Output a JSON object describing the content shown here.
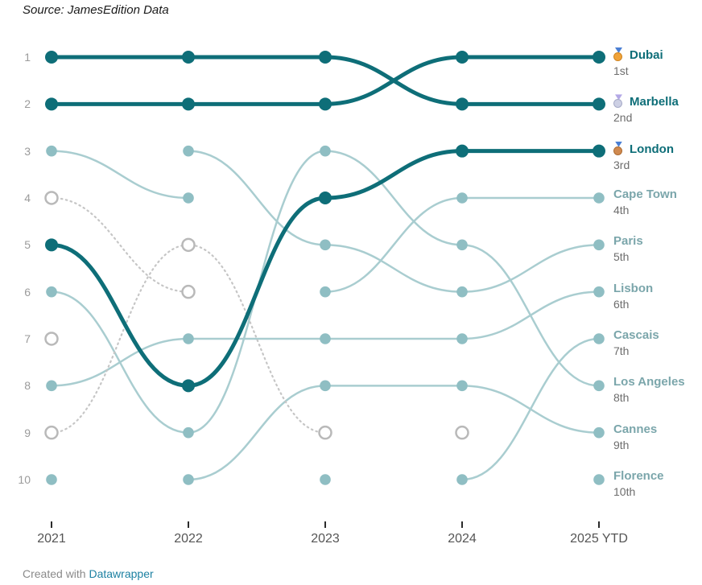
{
  "source_note": "Source: JamesEdition Data",
  "footer": {
    "prefix": "Created with ",
    "link_label": "Datawrapper"
  },
  "colors": {
    "dark": "#0e6e78",
    "light-line": "#a9cdd0",
    "light-dot": "#8fbec3",
    "open-stroke": "#b9b9b9",
    "dotted-line": "#c6c6c6",
    "rank-label": "#9b9b9b",
    "axis-label": "#555555",
    "name-light": "#7ba6ab",
    "ordinal": "#6d6d6d",
    "link": "#1d81a2",
    "source-text": "#1a1a1a",
    "footer-text": "#8a8a8a",
    "tick": "#2b2b2b"
  },
  "chart_data": {
    "type": "line",
    "subtype": "bump-rank-chart",
    "x_labels": [
      "2021",
      "2022",
      "2023",
      "2024",
      "2025 YTD"
    ],
    "rank_axis": [
      "1",
      "2",
      "3",
      "4",
      "5",
      "6",
      "7",
      "8",
      "9",
      "10"
    ],
    "rank_range": [
      1,
      10
    ],
    "grid": false,
    "legend_position": "right-inline-labels",
    "series": [
      {
        "name": "Dubai",
        "label": "Dubai",
        "ordinal": "1st",
        "medal": "gold",
        "emphasis": "dark",
        "points": [
          {
            "x": "2021",
            "rank": 2
          },
          {
            "x": "2022",
            "rank": 2
          },
          {
            "x": "2023",
            "rank": 2
          },
          {
            "x": "2024",
            "rank": 1
          },
          {
            "x": "2025 YTD",
            "rank": 1
          }
        ]
      },
      {
        "name": "Marbella",
        "label": "Marbella",
        "ordinal": "2nd",
        "medal": "silver",
        "emphasis": "dark",
        "points": [
          {
            "x": "2021",
            "rank": 1
          },
          {
            "x": "2022",
            "rank": 1
          },
          {
            "x": "2023",
            "rank": 1
          },
          {
            "x": "2024",
            "rank": 2
          },
          {
            "x": "2025 YTD",
            "rank": 2
          }
        ]
      },
      {
        "name": "London",
        "label": "London",
        "ordinal": "3rd",
        "medal": "bronze",
        "emphasis": "dark",
        "points": [
          {
            "x": "2021",
            "rank": 5
          },
          {
            "x": "2022",
            "rank": 8
          },
          {
            "x": "2023",
            "rank": 4
          },
          {
            "x": "2024",
            "rank": 3
          },
          {
            "x": "2025 YTD",
            "rank": 3
          }
        ]
      },
      {
        "name": "Cape Town",
        "label": "Cape Town",
        "ordinal": "4th",
        "medal": null,
        "emphasis": "light",
        "points": [
          {
            "x": "2023",
            "rank": 6
          },
          {
            "x": "2024",
            "rank": 4
          },
          {
            "x": "2025 YTD",
            "rank": 4
          }
        ]
      },
      {
        "name": "Paris",
        "label": "Paris",
        "ordinal": "5th",
        "medal": null,
        "emphasis": "light",
        "points": [
          {
            "x": "2022",
            "rank": 3
          },
          {
            "x": "2023",
            "rank": 5
          },
          {
            "x": "2024",
            "rank": 6
          },
          {
            "x": "2025 YTD",
            "rank": 5
          }
        ]
      },
      {
        "name": "Lisbon",
        "label": "Lisbon",
        "ordinal": "6th",
        "medal": null,
        "emphasis": "light",
        "points": [
          {
            "x": "2021",
            "rank": 8
          },
          {
            "x": "2022",
            "rank": 7
          },
          {
            "x": "2023",
            "rank": 7
          },
          {
            "x": "2024",
            "rank": 7
          },
          {
            "x": "2025 YTD",
            "rank": 6
          }
        ]
      },
      {
        "name": "Cascais",
        "label": "Cascais",
        "ordinal": "7th",
        "medal": null,
        "emphasis": "light",
        "points": [
          {
            "x": "2024",
            "rank": 10
          },
          {
            "x": "2025 YTD",
            "rank": 7
          }
        ]
      },
      {
        "name": "Los Angeles",
        "label": "Los Angeles",
        "ordinal": "8th",
        "medal": null,
        "emphasis": "light",
        "points": [
          {
            "x": "2021",
            "rank": 6
          },
          {
            "x": "2022",
            "rank": 9
          },
          {
            "x": "2023",
            "rank": 3
          },
          {
            "x": "2024",
            "rank": 5
          },
          {
            "x": "2025 YTD",
            "rank": 8
          }
        ]
      },
      {
        "name": "Cannes",
        "label": "Cannes",
        "ordinal": "9th",
        "medal": null,
        "emphasis": "light",
        "points": [
          {
            "x": "2022",
            "rank": 10
          },
          {
            "x": "2023",
            "rank": 8
          },
          {
            "x": "2024",
            "rank": 8
          },
          {
            "x": "2025 YTD",
            "rank": 9
          }
        ]
      },
      {
        "name": "Florence",
        "label": "Florence",
        "ordinal": "10th",
        "medal": null,
        "emphasis": "light",
        "points": [
          {
            "x": "2025 YTD",
            "rank": 10
          }
        ]
      },
      {
        "name": "unlabeled-solid",
        "label": "",
        "ordinal": "",
        "medal": null,
        "emphasis": "light",
        "points": [
          {
            "x": "2021",
            "rank": 3
          },
          {
            "x": "2022",
            "rank": 4
          }
        ]
      },
      {
        "name": "unlabeled-dotted-1",
        "label": "",
        "ordinal": "",
        "medal": null,
        "emphasis": "dotted",
        "points": [
          {
            "x": "2021",
            "rank": 9,
            "open": true
          },
          {
            "x": "2022",
            "rank": 5,
            "open": true
          },
          {
            "x": "2023",
            "rank": 9,
            "open": true
          }
        ]
      },
      {
        "name": "unlabeled-dotted-2",
        "label": "",
        "ordinal": "",
        "medal": null,
        "emphasis": "dotted",
        "points": [
          {
            "x": "2021",
            "rank": 4,
            "open": true
          },
          {
            "x": "2022",
            "rank": 6,
            "open": true
          }
        ]
      }
    ],
    "orphan_points": [
      {
        "x": "2021",
        "rank": 7,
        "open": true
      },
      {
        "x": "2024",
        "rank": 9,
        "open": true
      },
      {
        "x": "2021",
        "rank": 10,
        "open": false
      },
      {
        "x": "2023",
        "rank": 10,
        "open": false
      }
    ]
  }
}
